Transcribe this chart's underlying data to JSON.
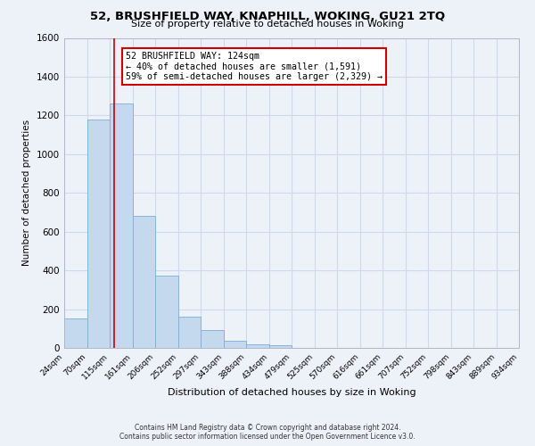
{
  "title": "52, BRUSHFIELD WAY, KNAPHILL, WOKING, GU21 2TQ",
  "subtitle": "Size of property relative to detached houses in Woking",
  "xlabel": "Distribution of detached houses by size in Woking",
  "ylabel": "Number of detached properties",
  "bar_color": "#c5d9ee",
  "bar_edge_color": "#7bafd4",
  "bin_edges": [
    24,
    70,
    115,
    161,
    206,
    252,
    297,
    343,
    388,
    434,
    479,
    525,
    570,
    616,
    661,
    707,
    752,
    798,
    843,
    889,
    934
  ],
  "bin_labels": [
    "24sqm",
    "70sqm",
    "115sqm",
    "161sqm",
    "206sqm",
    "252sqm",
    "297sqm",
    "343sqm",
    "388sqm",
    "434sqm",
    "479sqm",
    "525sqm",
    "570sqm",
    "616sqm",
    "661sqm",
    "707sqm",
    "752sqm",
    "798sqm",
    "843sqm",
    "889sqm",
    "934sqm"
  ],
  "bar_heights": [
    150,
    1180,
    1260,
    680,
    375,
    160,
    90,
    35,
    20,
    15,
    0,
    0,
    0,
    0,
    0,
    0,
    0,
    0,
    0,
    0
  ],
  "vline_x": 124,
  "vline_color": "#cc0000",
  "annotation_title": "52 BRUSHFIELD WAY: 124sqm",
  "annotation_line1": "← 40% of detached houses are smaller (1,591)",
  "annotation_line2": "59% of semi-detached houses are larger (2,329) →",
  "annotation_box_color": "#ffffff",
  "annotation_box_edge": "#cc0000",
  "ylim": [
    0,
    1600
  ],
  "yticks": [
    0,
    200,
    400,
    600,
    800,
    1000,
    1200,
    1400,
    1600
  ],
  "grid_color": "#d0d8ec",
  "background_color": "#edf2f9",
  "footer_line1": "Contains HM Land Registry data © Crown copyright and database right 2024.",
  "footer_line2": "Contains public sector information licensed under the Open Government Licence v3.0."
}
